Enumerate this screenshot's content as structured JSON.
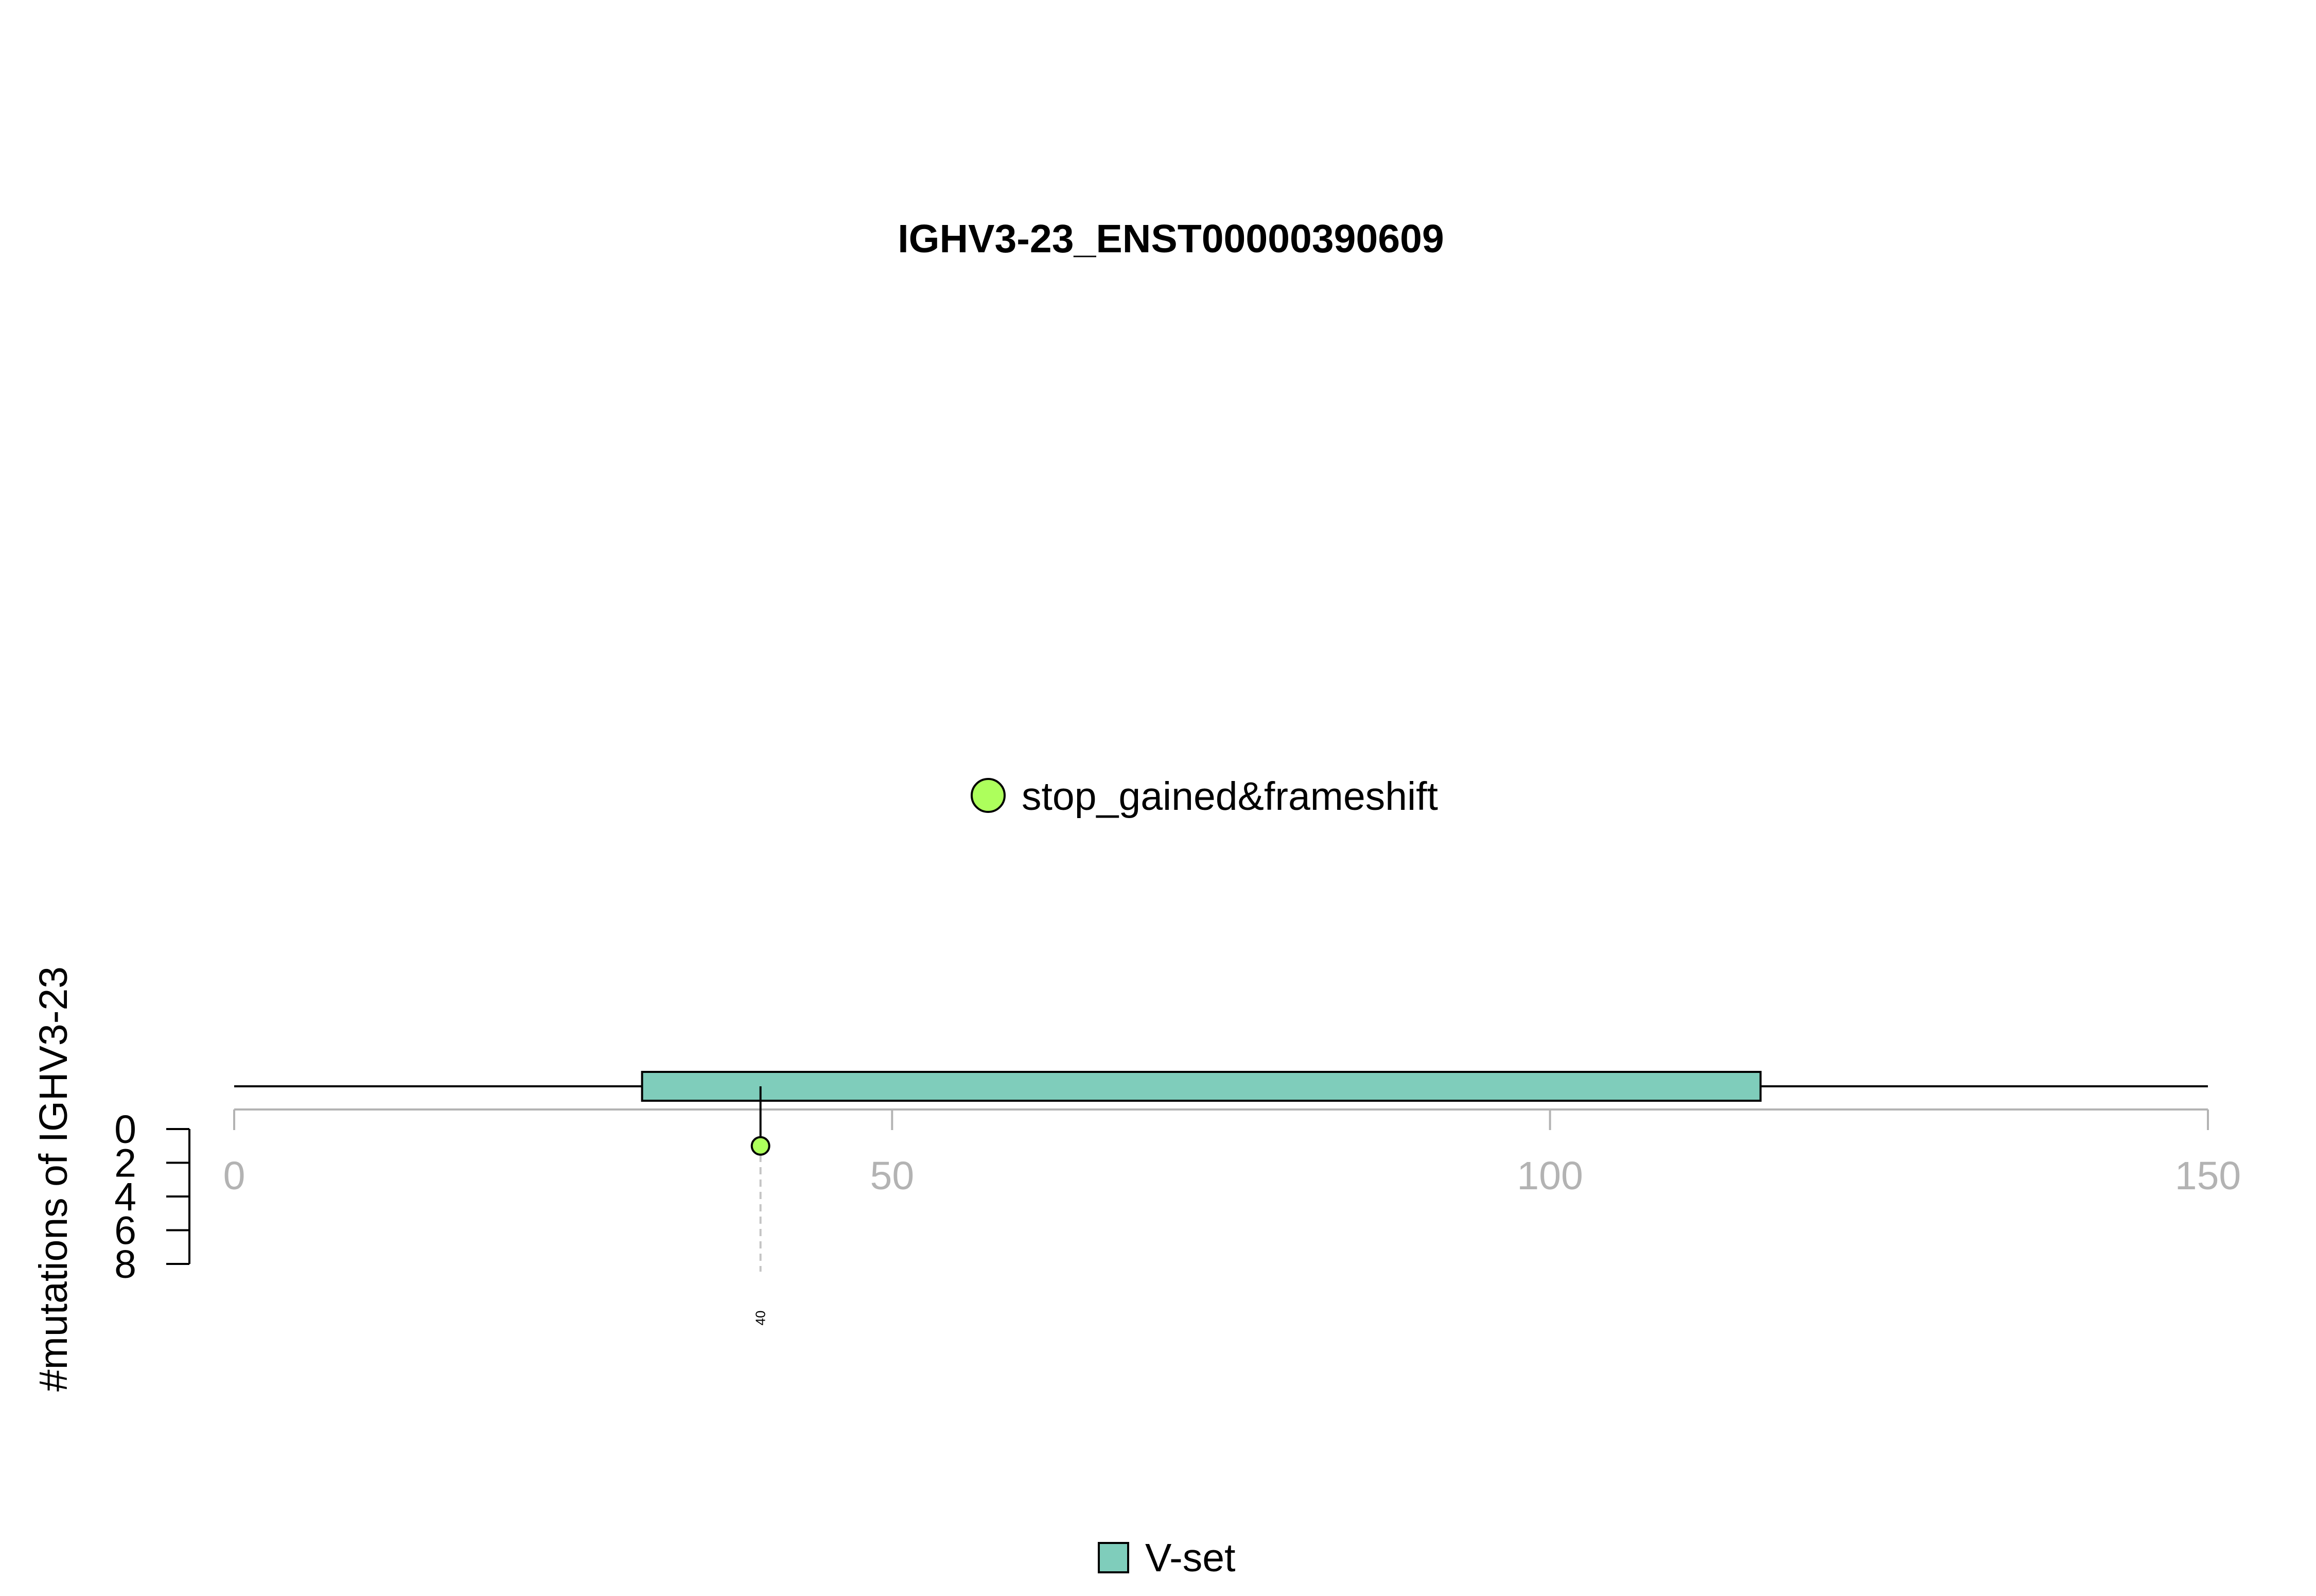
{
  "chart_data": {
    "type": "lollipop",
    "title": "IGHV3-23_ENST00000390609",
    "ylabel": "#mutations of IGHV3-23",
    "xlim": [
      0,
      150
    ],
    "x_ticks": [
      0,
      50,
      100,
      150
    ],
    "y_ticks": [
      0,
      2,
      4,
      6,
      8
    ],
    "protein_length": 150,
    "domains": [
      {
        "name": "V-set",
        "start": 31,
        "end": 116,
        "color": "#7fcdbb"
      }
    ],
    "mutations": [
      {
        "position": 40,
        "count": 1,
        "type": "stop_gained&frameshift",
        "color": "#adff5c",
        "label": "40"
      }
    ],
    "mutation_legend": [
      {
        "label": "stop_gained&frameshift",
        "color": "#adff5c"
      }
    ],
    "domain_legend": [
      {
        "label": "V-set",
        "color": "#7fcdbb"
      }
    ],
    "grid": false
  }
}
